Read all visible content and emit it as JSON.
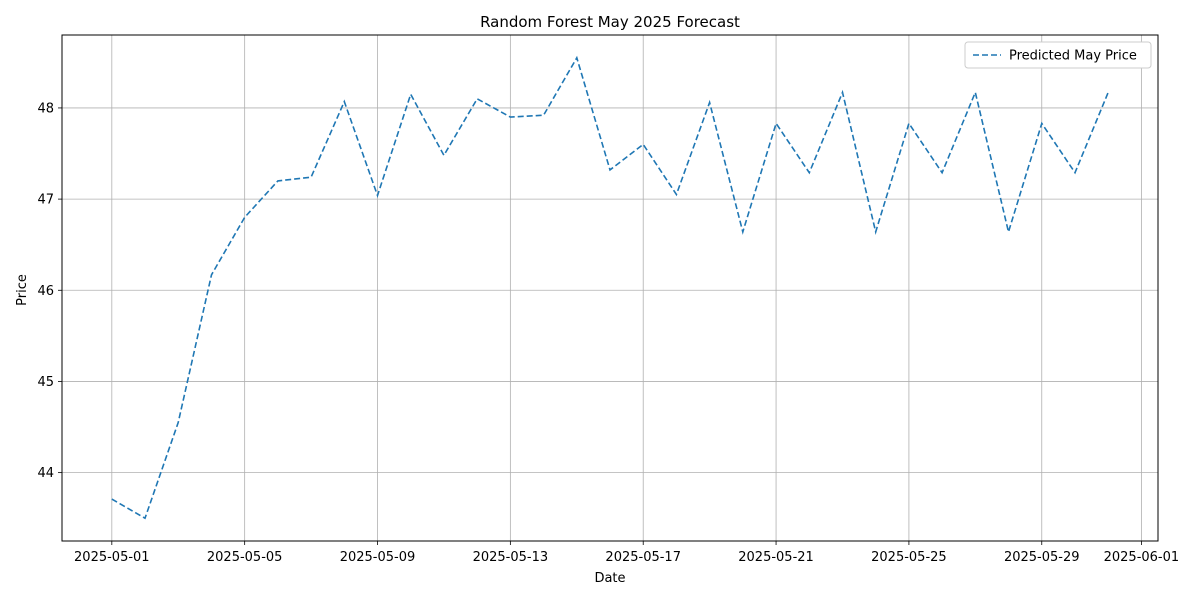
{
  "chart_data": {
    "type": "line",
    "title": "Random Forest May 2025 Forecast",
    "xlabel": "Date",
    "ylabel": "Price",
    "x_tick_labels": [
      "2025-05-01",
      "2025-05-05",
      "2025-05-09",
      "2025-05-13",
      "2025-05-17",
      "2025-05-21",
      "2025-05-25",
      "2025-05-29",
      "2025-06-01"
    ],
    "y_tick_labels": [
      "44",
      "45",
      "46",
      "47",
      "48"
    ],
    "xlim": [
      "2025-04-29.5",
      "2025-06-01.5"
    ],
    "ylim": [
      43.25,
      48.8
    ],
    "grid": true,
    "legend_position": "top-right",
    "series": [
      {
        "name": "Predicted May Price",
        "color": "#1f77b4",
        "line_style": "dashed",
        "x": [
          "2025-05-01",
          "2025-05-02",
          "2025-05-03",
          "2025-05-04",
          "2025-05-05",
          "2025-05-06",
          "2025-05-07",
          "2025-05-08",
          "2025-05-09",
          "2025-05-10",
          "2025-05-11",
          "2025-05-12",
          "2025-05-13",
          "2025-05-14",
          "2025-05-15",
          "2025-05-16",
          "2025-05-17",
          "2025-05-18",
          "2025-05-19",
          "2025-05-20",
          "2025-05-21",
          "2025-05-22",
          "2025-05-23",
          "2025-05-24",
          "2025-05-25",
          "2025-05-26",
          "2025-05-27",
          "2025-05-28",
          "2025-05-29",
          "2025-05-30",
          "2025-05-31"
        ],
        "values": [
          43.71,
          43.5,
          44.55,
          46.17,
          46.8,
          47.2,
          47.24,
          48.07,
          47.04,
          48.15,
          47.48,
          48.1,
          47.9,
          47.92,
          48.55,
          47.32,
          47.6,
          47.05,
          48.06,
          46.64,
          47.83,
          47.29,
          48.17,
          46.64,
          47.83,
          47.29,
          48.17,
          46.64,
          47.83,
          47.29,
          48.17
        ]
      }
    ]
  }
}
